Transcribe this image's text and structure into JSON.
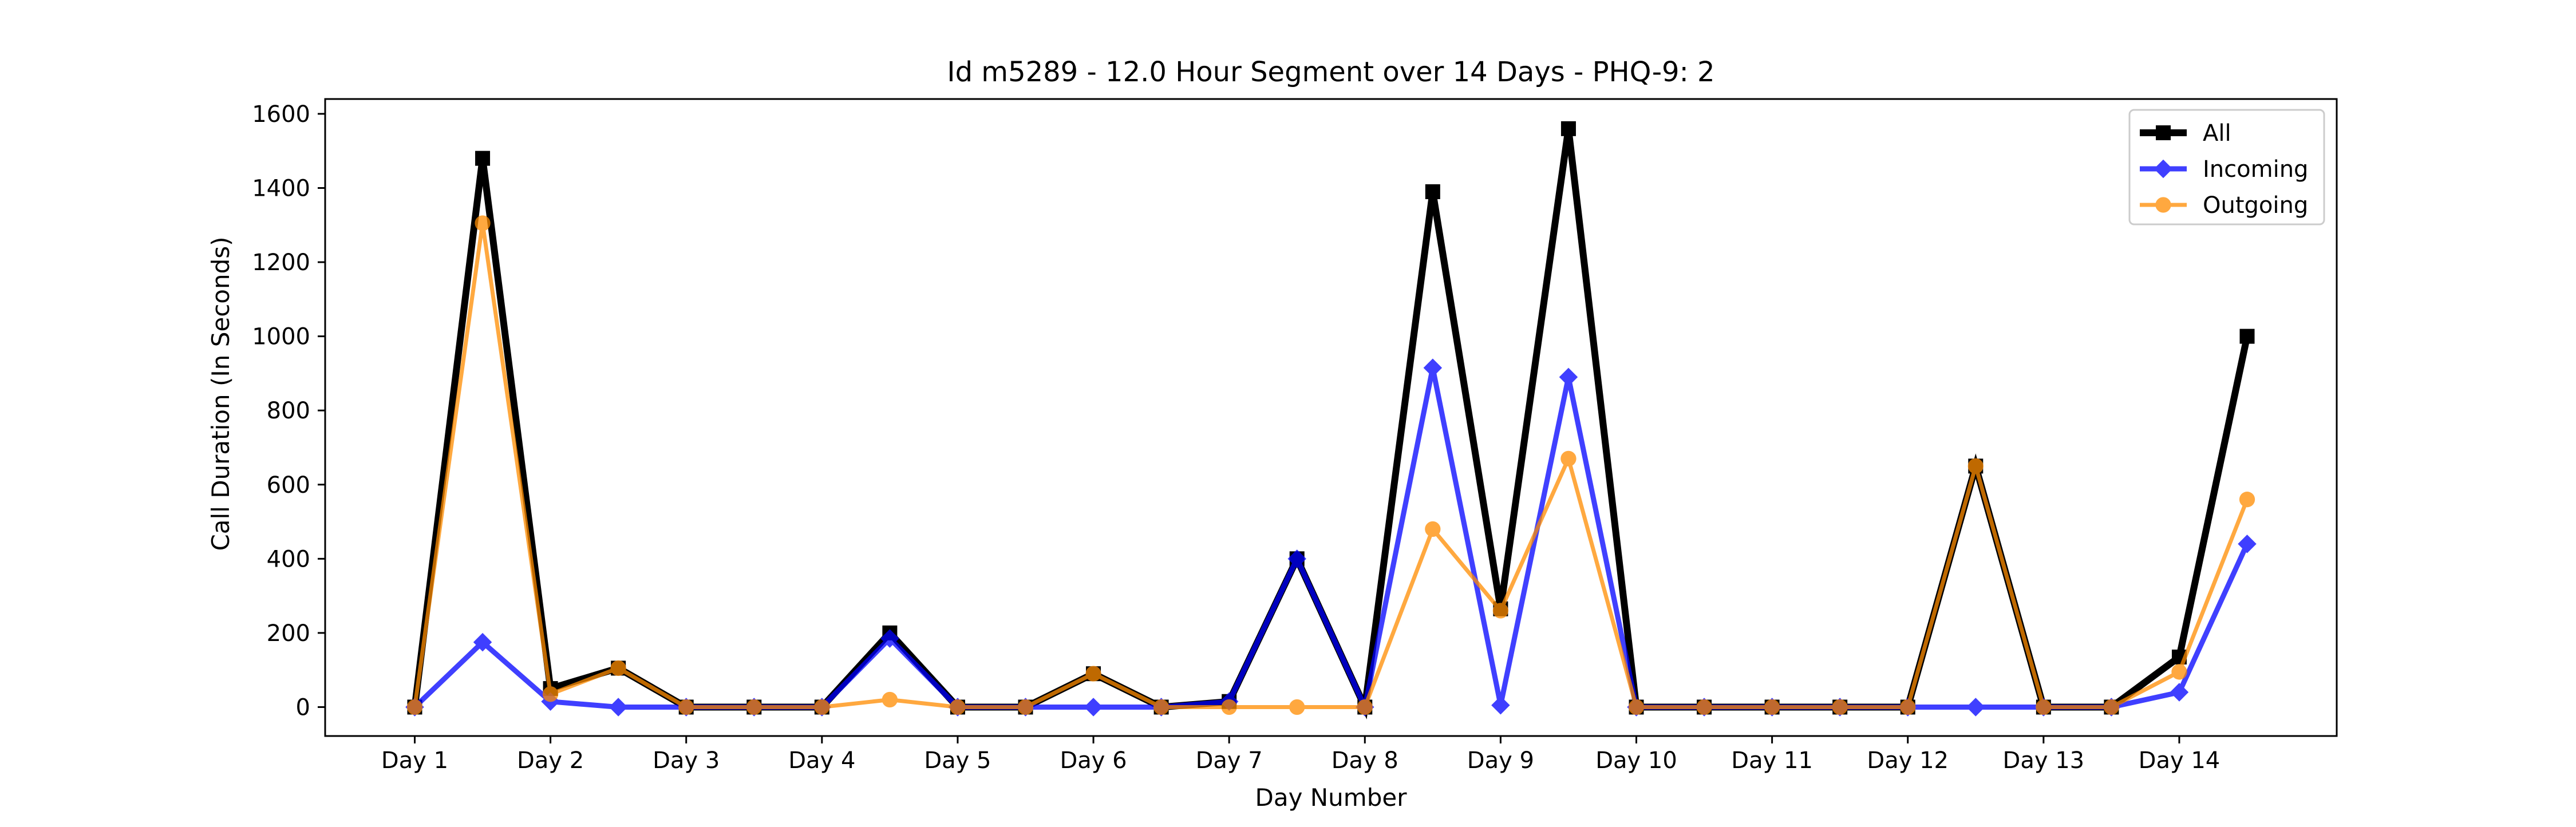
{
  "chart_data": {
    "type": "line",
    "title": "Id m5289 - 12.0 Hour Segment over 14 Days - PHQ-9: 2",
    "xlabel": "Day Number",
    "ylabel": "Call Duration (In Seconds)",
    "x": [
      1,
      1.5,
      2,
      2.5,
      3,
      3.5,
      4,
      4.5,
      5,
      5.5,
      6,
      6.5,
      7,
      7.5,
      8,
      8.5,
      9,
      9.5,
      10,
      10.5,
      11,
      11.5,
      12,
      12.5,
      13,
      13.5,
      14,
      14.5
    ],
    "xticks": [
      1,
      2,
      3,
      4,
      5,
      6,
      7,
      8,
      9,
      10,
      11,
      12,
      13,
      14
    ],
    "xtick_labels": [
      "Day 1",
      "Day 2",
      "Day 3",
      "Day 4",
      "Day 5",
      "Day 6",
      "Day 7",
      "Day 8",
      "Day 9",
      "Day 10",
      "Day 11",
      "Day 12",
      "Day 13",
      "Day 14"
    ],
    "yticks": [
      0,
      200,
      400,
      600,
      800,
      1000,
      1200,
      1400,
      1600
    ],
    "ytick_labels": [
      "0",
      "200",
      "400",
      "600",
      "800",
      "1000",
      "1200",
      "1400",
      "1600"
    ],
    "xlim": [
      0.34,
      15.16
    ],
    "ylim": [
      -78,
      1640
    ],
    "grid": false,
    "legend_position": "top-right",
    "series": [
      {
        "name": "All",
        "color": "#000000",
        "marker": "square",
        "values": [
          0,
          1480,
          50,
          105,
          0,
          0,
          0,
          200,
          0,
          0,
          90,
          0,
          15,
          400,
          0,
          1390,
          265,
          1560,
          0,
          0,
          0,
          0,
          0,
          650,
          0,
          0,
          135,
          1000
        ]
      },
      {
        "name": "Incoming",
        "color": "#0000ff",
        "marker": "diamond",
        "values": [
          0,
          175,
          15,
          0,
          0,
          0,
          0,
          185,
          0,
          0,
          0,
          0,
          15,
          400,
          0,
          915,
          5,
          890,
          0,
          0,
          0,
          0,
          0,
          0,
          0,
          0,
          40,
          440
        ]
      },
      {
        "name": "Outgoing",
        "color": "#ff8c00",
        "marker": "circle",
        "values": [
          0,
          1305,
          35,
          105,
          0,
          0,
          0,
          20,
          0,
          0,
          90,
          0,
          0,
          0,
          0,
          480,
          260,
          670,
          0,
          0,
          0,
          0,
          0,
          650,
          0,
          0,
          95,
          560
        ]
      }
    ]
  }
}
